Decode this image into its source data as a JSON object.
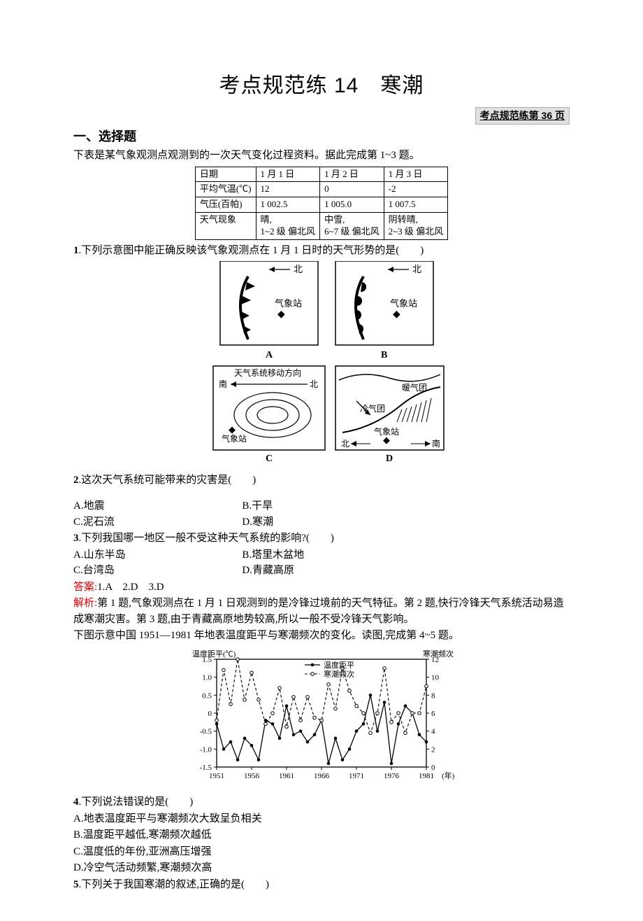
{
  "title": "考点规范练 14　寒潮",
  "page_ref": "考点规范练第 36 页",
  "section1": "一、选择题",
  "intro1": "下表是某气象观测点观测到的一次天气变化过程资料。据此完成第 1~3 题。",
  "table1": {
    "header": [
      "日期",
      "1 月 1 日",
      "1 月 2 日",
      "1 月 3 日"
    ],
    "rows": [
      [
        "平均气温(℃)",
        "12",
        "0",
        "-2"
      ],
      [
        "气压(百帕)",
        "1 002.5",
        "1 005.0",
        "1 007.5"
      ],
      [
        "天气现象",
        "晴,\n1~2 级 偏北风",
        "中雪,\n6~7 级 偏北风",
        "阴转晴,\n2~3 级 偏北风"
      ]
    ]
  },
  "q1": {
    "num": "1",
    "stem": ".下列示意图中能正确反映该气象观测点在 1 月 1 日时的天气形势的是(　　)"
  },
  "fig1": {
    "A": {
      "north": "北",
      "station": "气象站",
      "label": "A"
    },
    "B": {
      "north": "北",
      "station": "气象站",
      "label": "B"
    },
    "C": {
      "north": "北",
      "south": "南",
      "station": "气象站",
      "dir": "天气系统移动方向",
      "label": "C"
    },
    "D": {
      "north": "北",
      "south": "南",
      "station": "气象站",
      "warm": "暖气团",
      "cold": "冷气团",
      "label": "D"
    }
  },
  "q2": {
    "num": "2",
    "stem": ".这次天气系统可能带来的灾害是(　　)",
    "opts": [
      "A.地震",
      "B.干旱",
      "C.泥石流",
      "D.寒潮"
    ]
  },
  "q3": {
    "num": "3",
    "stem": ".下列我国哪一地区一般不受这种天气系统的影响?(　　)",
    "opts": [
      "A.山东半岛",
      "B.塔里木盆地",
      "C.台湾岛",
      "D.青藏高原"
    ]
  },
  "ans1": {
    "label": "答案:",
    "text": "1.A　2.D　3.D"
  },
  "exp1": {
    "label": "解析:",
    "text": "第 1 题,气象观测点在 1 月 1 日观测到的是冷锋过境前的天气特征。第 2 题,快行冷锋天气系统活动易造成寒潮灾害。第 3 题,由于青藏高原地势较高,所以一般不受冷锋天气影响。"
  },
  "intro2": "下图示意中国 1951—1981 年地表温度距平与寒潮频次的变化。读图,完成第 4~5 题。",
  "chart": {
    "type": "dual-axis-line",
    "ylabel_left": "温度距平(℃)",
    "ylabel_right": "寒潮频次",
    "legend": [
      "温度距平",
      "寒潮频次"
    ],
    "markers": [
      "solid-circle",
      "open-circle"
    ],
    "line_styles": [
      "solid",
      "dashed"
    ],
    "colors": [
      "#000000",
      "#000000"
    ],
    "background": "#ffffff",
    "left_ticks": [
      -1.5,
      -1.0,
      -0.5,
      0,
      0.5,
      1.0,
      1.5
    ],
    "right_ticks": [
      0,
      2,
      4,
      6,
      8,
      10,
      12
    ],
    "x_ticks": [
      1951,
      1956,
      1961,
      1966,
      1971,
      1976,
      1981
    ],
    "xlabel_suffix": "(年)",
    "temp_anomaly": [
      -0.3,
      -1.0,
      -0.8,
      -1.3,
      -0.7,
      -0.9,
      -1.3,
      -0.2,
      -0.3,
      -0.7,
      0.2,
      -0.6,
      -0.5,
      -0.8,
      -0.6,
      -0.2,
      -1.4,
      -0.7,
      -1.3,
      -1.0,
      -0.5,
      -0.3,
      0.5,
      -0.5,
      0.3,
      -1.4,
      -0.3,
      0.2,
      0.0,
      -0.6,
      -0.8
    ],
    "cold_wave": [
      5.2,
      10.8,
      7.0,
      12.0,
      7.5,
      10.5,
      7.5,
      4.8,
      6.0,
      8.8,
      4.5,
      7.8,
      5.2,
      7.8,
      5.5,
      5.2,
      9.2,
      6.5,
      11.0,
      8.5,
      6.8,
      6.0,
      3.8,
      6.0,
      11.0,
      5.0,
      6.0,
      3.8,
      6.0,
      6.0,
      9.0
    ]
  },
  "q4": {
    "num": "4",
    "stem": ".下列说法错误的是(　　)",
    "opts": [
      "A.地表温度距平与寒潮频次大致呈负相关",
      "B.温度距平越低,寒潮频次越低",
      "C.温度低的年份,亚洲高压增强",
      "D.冷空气活动频繁,寒潮频次高"
    ]
  },
  "q5": {
    "num": "5",
    "stem": ".下列关于我国寒潮的叙述,正确的是(　　)"
  }
}
